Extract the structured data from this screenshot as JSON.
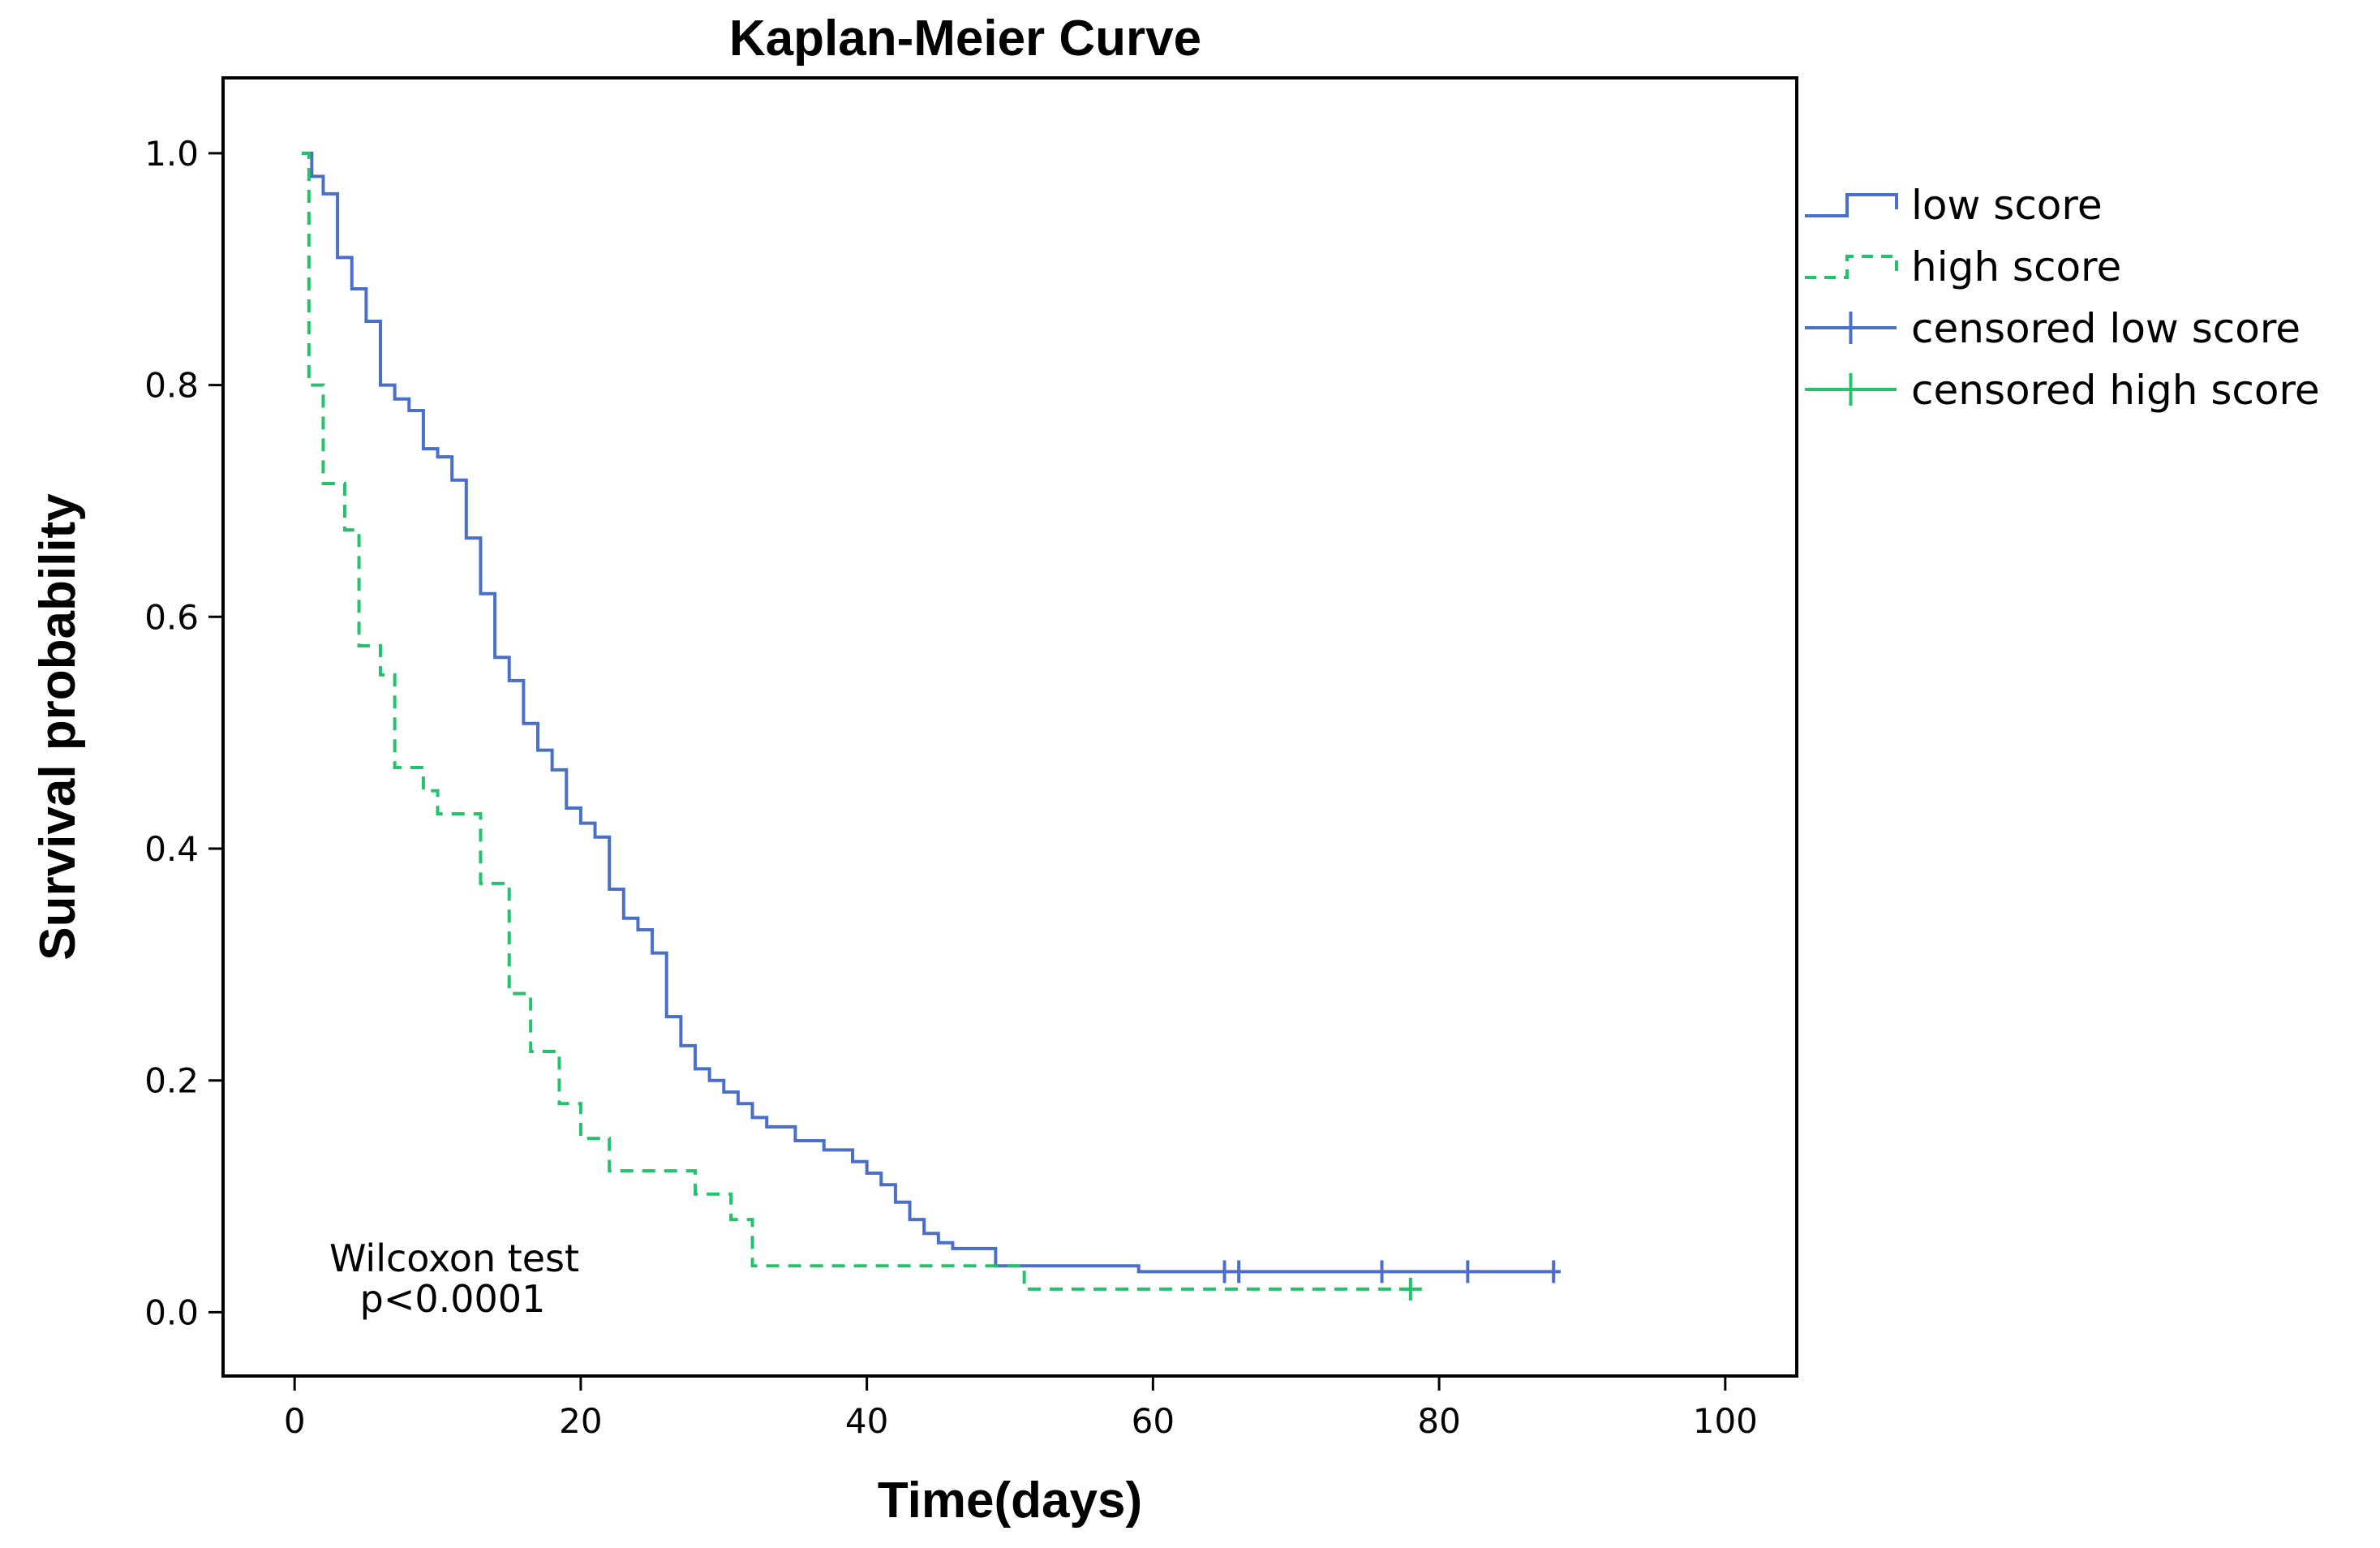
{
  "chart_data": {
    "type": "line",
    "subtype": "kaplan-meier step",
    "title": "Kaplan-Meier Curve",
    "xlabel": "Time(days)",
    "ylabel": "Survival probability",
    "xlim": [
      -5,
      105
    ],
    "ylim": [
      -0.055,
      1.065
    ],
    "xticks": [
      0,
      20,
      40,
      60,
      80,
      100
    ],
    "yticks": [
      0.0,
      0.2,
      0.4,
      0.6,
      0.8,
      1.0
    ],
    "ytick_labels": [
      "0.0",
      "0.2",
      "0.4",
      "0.6",
      "0.8",
      "1.0"
    ],
    "grid": false,
    "legend_position": "right",
    "annotation": [
      "Wilcoxon test",
      "p<0.0001"
    ],
    "series": [
      {
        "name": "low score",
        "color": "#4a6fc8",
        "style": "solid",
        "points": [
          [
            0.5,
            1.0
          ],
          [
            1.2,
            0.98
          ],
          [
            2,
            0.965
          ],
          [
            3,
            0.91
          ],
          [
            4,
            0.883
          ],
          [
            5,
            0.855
          ],
          [
            6,
            0.8
          ],
          [
            7,
            0.788
          ],
          [
            8,
            0.778
          ],
          [
            9,
            0.745
          ],
          [
            10,
            0.738
          ],
          [
            11,
            0.718
          ],
          [
            12,
            0.668
          ],
          [
            13,
            0.62
          ],
          [
            14,
            0.565
          ],
          [
            15,
            0.545
          ],
          [
            16,
            0.508
          ],
          [
            17,
            0.485
          ],
          [
            18,
            0.468
          ],
          [
            19,
            0.435
          ],
          [
            20,
            0.422
          ],
          [
            21,
            0.41
          ],
          [
            22,
            0.365
          ],
          [
            23,
            0.34
          ],
          [
            24,
            0.33
          ],
          [
            25,
            0.31
          ],
          [
            26,
            0.255
          ],
          [
            27,
            0.23
          ],
          [
            28,
            0.21
          ],
          [
            29,
            0.2
          ],
          [
            30,
            0.19
          ],
          [
            31,
            0.18
          ],
          [
            32,
            0.168
          ],
          [
            33,
            0.16
          ],
          [
            35,
            0.148
          ],
          [
            37,
            0.14
          ],
          [
            39,
            0.13
          ],
          [
            40,
            0.12
          ],
          [
            41,
            0.11
          ],
          [
            42,
            0.095
          ],
          [
            43,
            0.08
          ],
          [
            44,
            0.068
          ],
          [
            45,
            0.06
          ],
          [
            46,
            0.055
          ],
          [
            49,
            0.04
          ],
          [
            59,
            0.035
          ],
          [
            88.5,
            0.035
          ]
        ],
        "censored": [
          [
            65,
            0.035
          ],
          [
            66,
            0.035
          ],
          [
            76,
            0.035
          ],
          [
            82,
            0.035
          ],
          [
            88,
            0.035
          ]
        ]
      },
      {
        "name": "high score",
        "color": "#22c36a",
        "style": "dashed",
        "points": [
          [
            0.5,
            1.0
          ],
          [
            1,
            0.8
          ],
          [
            2,
            0.715
          ],
          [
            3.5,
            0.675
          ],
          [
            4.5,
            0.575
          ],
          [
            6,
            0.55
          ],
          [
            7,
            0.47
          ],
          [
            9,
            0.45
          ],
          [
            10,
            0.43
          ],
          [
            13,
            0.37
          ],
          [
            15,
            0.275
          ],
          [
            16.5,
            0.225
          ],
          [
            18.5,
            0.18
          ],
          [
            20,
            0.15
          ],
          [
            22,
            0.122
          ],
          [
            28,
            0.102
          ],
          [
            30.5,
            0.08
          ],
          [
            32,
            0.04
          ],
          [
            51,
            0.02
          ],
          [
            78,
            0.02
          ]
        ],
        "censored": [
          [
            78,
            0.02
          ]
        ]
      }
    ],
    "legend": [
      "low score",
      "high score",
      "censored low score",
      "censored high score"
    ]
  }
}
